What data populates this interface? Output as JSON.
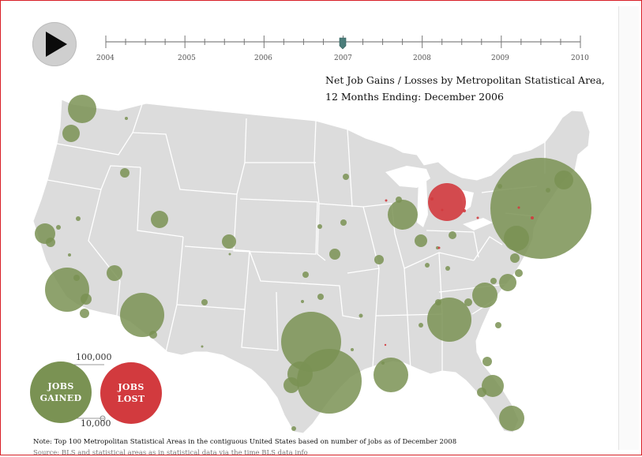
{
  "player": {
    "play_icon": "play-icon"
  },
  "timeline": {
    "years": [
      "2004",
      "2005",
      "2006",
      "2007",
      "2008",
      "2009",
      "2010"
    ],
    "current_position": "2007"
  },
  "title": {
    "line1": "Net Job Gains / Losses by  Metropolitan Statistical Area,",
    "line2": "12 Months Ending: December  2006"
  },
  "legend": {
    "scale_large": "100,000",
    "scale_small": "10,000",
    "gained_line1": "JOBS",
    "gained_line2": "GAINED",
    "lost_line1": "JOBS",
    "lost_line2": "LOST"
  },
  "note": {
    "text": "Note: Top 100 Metropolitan Statistical Areas in the contiguous United States based on number of jobs as of December 2008",
    "source": "Source: BLS and statistical areas as in statistical data via the time BLS data info"
  },
  "colors": {
    "gain": "#7a9253",
    "loss": "#d23a3e",
    "map_fill": "#dcdcdc",
    "map_border": "#ffffff"
  }
}
